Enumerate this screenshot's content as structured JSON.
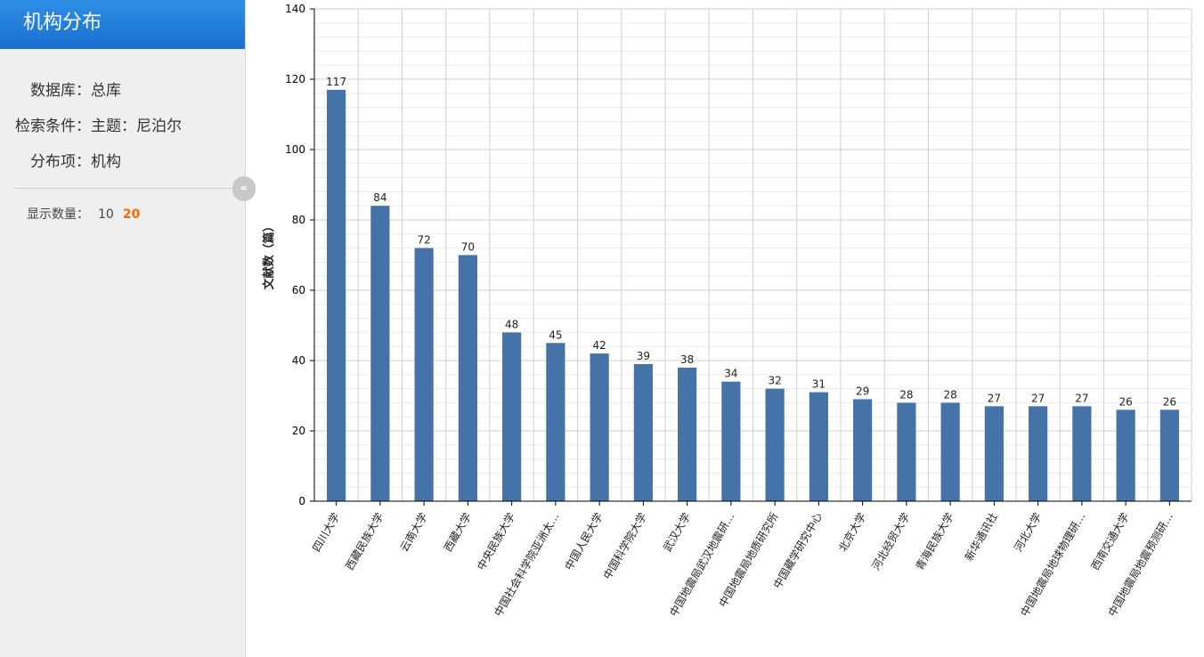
{
  "panel": {
    "title": "机构分布",
    "database_label": "数据库：",
    "database_value": "总库",
    "condition_label": "检索条件：",
    "condition_value": "主题：尼泊尔",
    "item_label": "分布项：",
    "item_value": "机构",
    "count_label": "显示数量：",
    "count_options": [
      "10",
      "20"
    ],
    "count_selected": "20",
    "collapse_glyph": "«"
  },
  "chart_data": {
    "type": "bar",
    "title": "",
    "xlabel": "",
    "ylabel": "文献数（篇）",
    "ylim": [
      0,
      140
    ],
    "yticks": [
      0,
      20,
      40,
      60,
      80,
      100,
      120,
      140
    ],
    "grid": true,
    "categories": [
      "四川大学",
      "西藏民族大学",
      "云南大学",
      "西藏大学",
      "中央民族大学",
      "中国社会科学院亚洲太…",
      "中国人民大学",
      "中国科学院大学",
      "武汉大学",
      "中国地震局武汉地震研…",
      "中国地震局地质研究所",
      "中国藏学研究中心",
      "北京大学",
      "河北经贸大学",
      "青海民族大学",
      "新华通讯社",
      "河北大学",
      "中国地震局地球物理研…",
      "西南交通大学",
      "中国地震局地震预测研…"
    ],
    "values": [
      117,
      84,
      72,
      70,
      48,
      45,
      42,
      39,
      38,
      34,
      32,
      31,
      29,
      28,
      28,
      27,
      27,
      27,
      26,
      26
    ],
    "bar_color": "#4572a7"
  }
}
